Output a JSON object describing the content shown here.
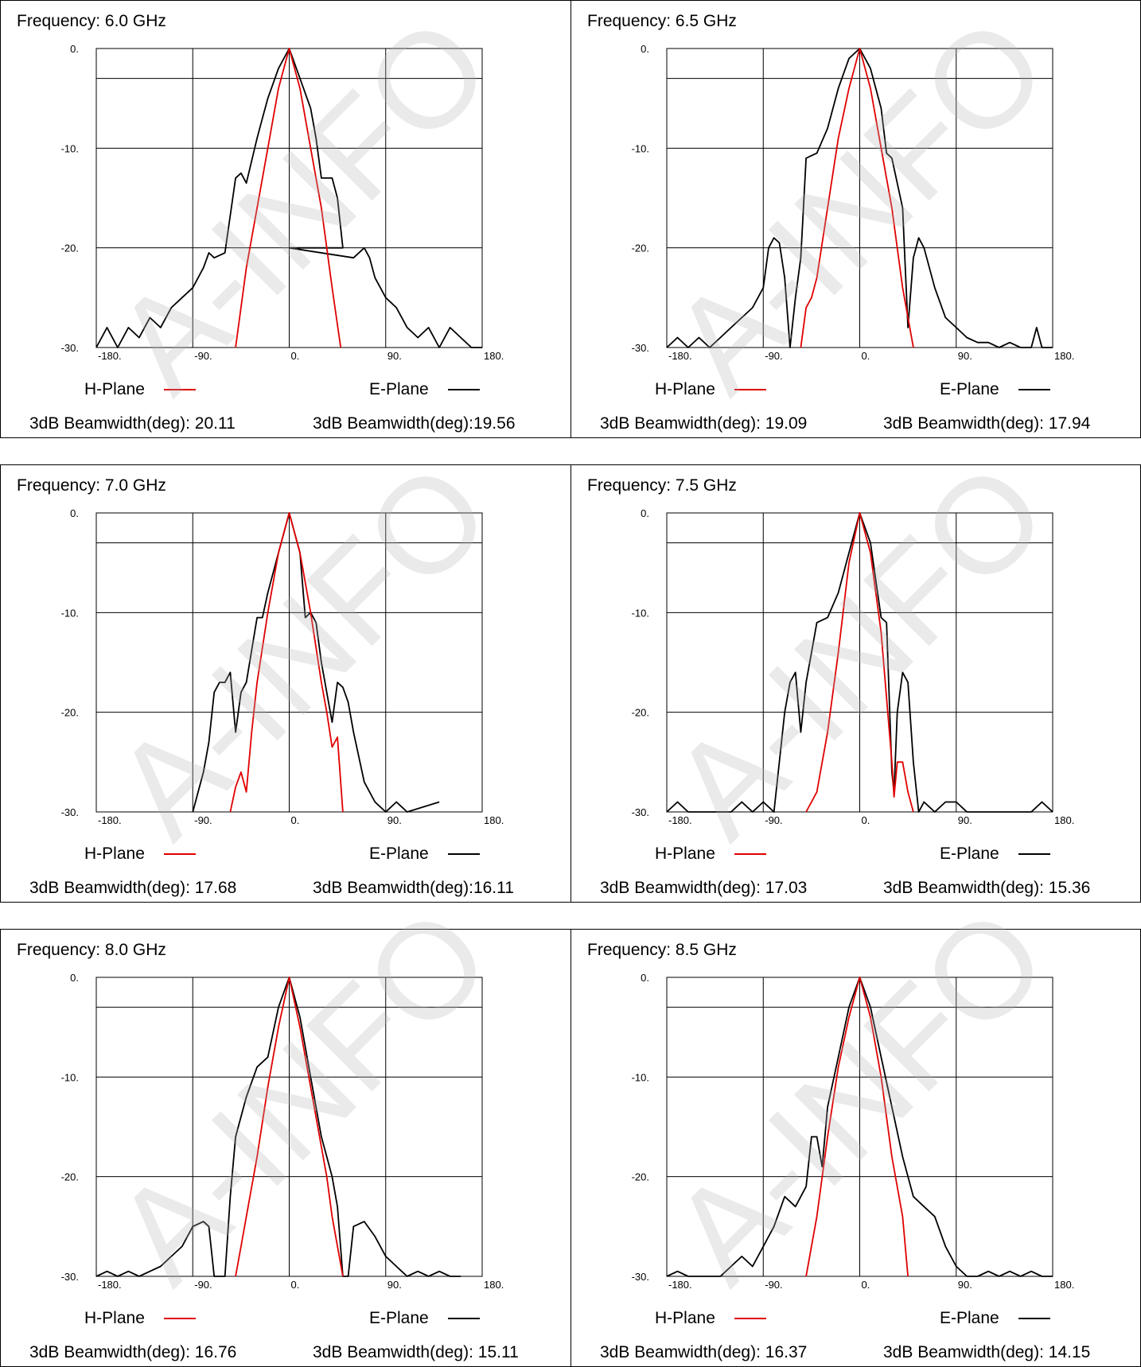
{
  "watermark": "A-INFO",
  "colors": {
    "h_plane": "#e00000",
    "e_plane": "#000000",
    "grid": "#000000"
  },
  "legend": {
    "h_plane": "H-Plane",
    "e_plane": "E-Plane"
  },
  "axis": {
    "y_ticks": [
      "0.",
      "-10.",
      "-20.",
      "-30."
    ],
    "x_ticks": [
      "-180.",
      "-90.",
      "0.",
      "90.",
      "180."
    ]
  },
  "panels": [
    {
      "frequency": "Frequency: 6.0 GHz",
      "h_beamwidth": "3dB Beamwidth(deg): 20.11",
      "e_beamwidth": "3dB Beamwidth(deg):19.56"
    },
    {
      "frequency": "Frequency: 6.5 GHz",
      "h_beamwidth": "3dB Beamwidth(deg): 19.09",
      "e_beamwidth": "3dB Beamwidth(deg): 17.94"
    },
    {
      "frequency": "Frequency: 7.0 GHz",
      "h_beamwidth": "3dB Beamwidth(deg): 17.68",
      "e_beamwidth": "3dB Beamwidth(deg):16.11"
    },
    {
      "frequency": "Frequency: 7.5 GHz",
      "h_beamwidth": "3dB Beamwidth(deg): 17.03",
      "e_beamwidth": "3dB Beamwidth(deg): 15.36"
    },
    {
      "frequency": "Frequency: 8.0 GHz",
      "h_beamwidth": "3dB Beamwidth(deg): 16.76",
      "e_beamwidth": "3dB Beamwidth(deg): 15.11"
    },
    {
      "frequency": "Frequency: 8.5 GHz",
      "h_beamwidth": "3dB Beamwidth(deg): 16.37",
      "e_beamwidth": "3dB Beamwidth(deg): 14.15"
    }
  ],
  "chart_data": [
    {
      "type": "line",
      "title": "Frequency: 6.0 GHz",
      "xlim": [
        -180,
        180
      ],
      "ylim": [
        -30,
        0
      ],
      "grid": true,
      "reference_line_db": -3,
      "series": [
        {
          "name": "H-Plane",
          "color": "#e00000",
          "x": [
            -50,
            -40,
            -30,
            -20,
            -10,
            0,
            10,
            20,
            30,
            40,
            48
          ],
          "y": [
            -30,
            -22,
            -16,
            -10,
            -4,
            0,
            -4,
            -10,
            -16,
            -24,
            -30
          ]
        },
        {
          "name": "E-Plane",
          "color": "#000000",
          "x": [
            -180,
            -170,
            -160,
            -150,
            -140,
            -130,
            -120,
            -110,
            -100,
            -90,
            -80,
            -75,
            -70,
            -60,
            -50,
            -45,
            -40,
            -30,
            -25,
            -20,
            -10,
            0,
            10,
            20,
            25,
            30,
            40,
            45,
            50,
            0,
            60,
            70,
            75,
            80,
            90,
            100,
            110,
            120,
            130,
            140,
            150,
            160,
            170,
            180
          ],
          "y": [
            -30,
            -28,
            -30,
            -28,
            -29,
            -27,
            -28,
            -26,
            -25,
            -24,
            -22,
            -20.5,
            -21,
            -20.5,
            -13,
            -12.5,
            -13.5,
            -9,
            -7,
            -5,
            -2,
            0,
            -3,
            -6,
            -9,
            -13,
            -13,
            -15,
            -20,
            -20,
            -21,
            -20,
            -21,
            -23,
            -25,
            -26,
            -28,
            -29,
            -28,
            -30,
            -28,
            -29,
            -30,
            -30
          ]
        }
      ]
    },
    {
      "type": "line",
      "title": "Frequency: 6.5 GHz",
      "xlim": [
        -180,
        180
      ],
      "ylim": [
        -30,
        0
      ],
      "grid": true,
      "reference_line_db": -3,
      "series": [
        {
          "name": "H-Plane",
          "color": "#e00000",
          "x": [
            -55,
            -50,
            -45,
            -40,
            -30,
            -20,
            -10,
            0,
            10,
            20,
            30,
            40,
            50
          ],
          "y": [
            -30,
            -26,
            -25,
            -23,
            -16,
            -9,
            -4,
            0,
            -4,
            -10,
            -16,
            -24,
            -30
          ]
        },
        {
          "name": "E-Plane",
          "color": "#000000",
          "x": [
            -180,
            -170,
            -160,
            -150,
            -140,
            -130,
            -120,
            -110,
            -100,
            -90,
            -85,
            -80,
            -75,
            -70,
            -65,
            -60,
            -55,
            -50,
            -40,
            -30,
            -20,
            -10,
            0,
            10,
            20,
            25,
            30,
            40,
            45,
            50,
            55,
            60,
            70,
            80,
            90,
            100,
            110,
            120,
            130,
            140,
            150,
            160,
            165,
            170,
            180
          ],
          "y": [
            -30,
            -29,
            -30,
            -29,
            -30,
            -29,
            -28,
            -27,
            -26,
            -24,
            -20,
            -19,
            -19.5,
            -23,
            -30,
            -25,
            -21,
            -11,
            -10.5,
            -8,
            -4,
            -1,
            0,
            -2,
            -6,
            -10.5,
            -11,
            -16,
            -28,
            -21,
            -19,
            -20,
            -24,
            -27,
            -28,
            -29,
            -29.5,
            -29.5,
            -30,
            -29.5,
            -30,
            -30,
            -28,
            -30,
            -30
          ]
        }
      ]
    },
    {
      "type": "line",
      "title": "Frequency: 7.0 GHz",
      "xlim": [
        -180,
        180
      ],
      "ylim": [
        -30,
        0
      ],
      "grid": true,
      "reference_line_db": -3,
      "series": [
        {
          "name": "H-Plane",
          "color": "#e00000",
          "x": [
            -55,
            -50,
            -45,
            -40,
            -35,
            -30,
            -20,
            -10,
            0,
            10,
            20,
            30,
            35,
            40,
            45,
            50
          ],
          "y": [
            -30,
            -27.5,
            -26,
            -28,
            -22,
            -17,
            -10,
            -4,
            0,
            -4,
            -10,
            -17,
            -20,
            -23.5,
            -22.5,
            -30
          ]
        },
        {
          "name": "E-Plane",
          "color": "#000000",
          "x": [
            -90,
            -85,
            -80,
            -75,
            -70,
            -65,
            -60,
            -55,
            -50,
            -45,
            -40,
            -30,
            -25,
            -20,
            -10,
            0,
            10,
            15,
            20,
            25,
            30,
            40,
            45,
            50,
            55,
            60,
            70,
            80,
            90,
            100,
            110,
            140
          ],
          "y": [
            -30,
            -28,
            -26,
            -23,
            -18,
            -17,
            -17,
            -16,
            -22,
            -18,
            -17,
            -10.5,
            -10.5,
            -8,
            -4,
            0,
            -4,
            -10.5,
            -10,
            -11,
            -15,
            -21,
            -17,
            -17.5,
            -19,
            -22,
            -27,
            -29,
            -30,
            -29,
            -30,
            -29
          ]
        }
      ]
    },
    {
      "type": "line",
      "title": "Frequency: 7.5 GHz",
      "xlim": [
        -180,
        180
      ],
      "ylim": [
        -30,
        0
      ],
      "grid": true,
      "reference_line_db": -3,
      "series": [
        {
          "name": "H-Plane",
          "color": "#e00000",
          "x": [
            -50,
            -40,
            -30,
            -20,
            -10,
            0,
            10,
            20,
            30,
            32,
            35,
            40,
            45,
            50
          ],
          "y": [
            -30,
            -28,
            -22,
            -14,
            -5,
            0,
            -4,
            -12,
            -25,
            -28.5,
            -25,
            -25,
            -28,
            -30
          ]
        },
        {
          "name": "E-Plane",
          "color": "#000000",
          "x": [
            -180,
            -170,
            -160,
            -120,
            -110,
            -100,
            -90,
            -80,
            -70,
            -65,
            -60,
            -55,
            -50,
            -45,
            -40,
            -30,
            -20,
            -10,
            0,
            10,
            20,
            25,
            30,
            32,
            35,
            40,
            45,
            50,
            55,
            60,
            70,
            80,
            90,
            100,
            120,
            140,
            160,
            170,
            180
          ],
          "y": [
            -30,
            -29,
            -30,
            -30,
            -29,
            -30,
            -29,
            -30,
            -20,
            -17,
            -16,
            -22,
            -17,
            -14,
            -11,
            -10.5,
            -8,
            -4,
            0,
            -3,
            -10.5,
            -11,
            -26,
            -28,
            -20,
            -16,
            -17,
            -25,
            -30,
            -29,
            -30,
            -29,
            -29,
            -30,
            -30,
            -30,
            -30,
            -29,
            -30
          ]
        }
      ]
    },
    {
      "type": "line",
      "title": "Frequency: 8.0 GHz",
      "xlim": [
        -180,
        180
      ],
      "ylim": [
        -30,
        0
      ],
      "grid": true,
      "reference_line_db": -3,
      "series": [
        {
          "name": "H-Plane",
          "color": "#e00000",
          "x": [
            -50,
            -45,
            -40,
            -30,
            -20,
            -10,
            0,
            10,
            20,
            30,
            35,
            40,
            50
          ],
          "y": [
            -30,
            -27,
            -24,
            -18,
            -11,
            -5,
            0,
            -5,
            -11,
            -17,
            -20,
            -24,
            -30
          ]
        },
        {
          "name": "E-Plane",
          "color": "#000000",
          "x": [
            -180,
            -170,
            -160,
            -150,
            -140,
            -130,
            -120,
            -110,
            -100,
            -90,
            -80,
            -75,
            -70,
            -60,
            -55,
            -50,
            -40,
            -30,
            -20,
            -10,
            0,
            10,
            20,
            30,
            35,
            40,
            45,
            50,
            55,
            60,
            70,
            80,
            90,
            100,
            110,
            120,
            130,
            140,
            150,
            160
          ],
          "y": [
            -30,
            -29.5,
            -30,
            -29.5,
            -30,
            -29.5,
            -29,
            -28,
            -27,
            -25,
            -24.5,
            -25,
            -30,
            -30,
            -22,
            -16,
            -12,
            -9,
            -8,
            -3,
            0,
            -4,
            -10,
            -16,
            -18,
            -20,
            -23,
            -30,
            -30,
            -25,
            -24.5,
            -26,
            -28,
            -29,
            -30,
            -29.5,
            -30,
            -29.5,
            -30,
            -30
          ]
        }
      ]
    },
    {
      "type": "line",
      "title": "Frequency: 8.5 GHz",
      "xlim": [
        -180,
        180
      ],
      "ylim": [
        -30,
        0
      ],
      "grid": true,
      "reference_line_db": -3,
      "series": [
        {
          "name": "H-Plane",
          "color": "#e00000",
          "x": [
            -50,
            -40,
            -30,
            -20,
            -10,
            0,
            10,
            20,
            30,
            40,
            45
          ],
          "y": [
            -30,
            -24,
            -16,
            -9,
            -4,
            0,
            -4,
            -10,
            -18,
            -24,
            -30
          ]
        },
        {
          "name": "E-Plane",
          "color": "#000000",
          "x": [
            -180,
            -170,
            -160,
            -150,
            -140,
            -130,
            -120,
            -110,
            -100,
            -90,
            -80,
            -70,
            -60,
            -50,
            -45,
            -40,
            -35,
            -30,
            -20,
            -10,
            0,
            10,
            20,
            30,
            40,
            50,
            60,
            70,
            80,
            90,
            100,
            110,
            120,
            130,
            140,
            150,
            160,
            170,
            180
          ],
          "y": [
            -30,
            -29.5,
            -30,
            -30,
            -30,
            -30,
            -29,
            -28,
            -29,
            -27,
            -25,
            -22,
            -23,
            -21,
            -16,
            -16,
            -19,
            -13,
            -8,
            -3,
            0,
            -3,
            -8,
            -13,
            -18,
            -22,
            -23,
            -24,
            -27,
            -29,
            -30,
            -30,
            -29.5,
            -30,
            -29.5,
            -30,
            -29.5,
            -30,
            -30
          ]
        }
      ]
    }
  ]
}
